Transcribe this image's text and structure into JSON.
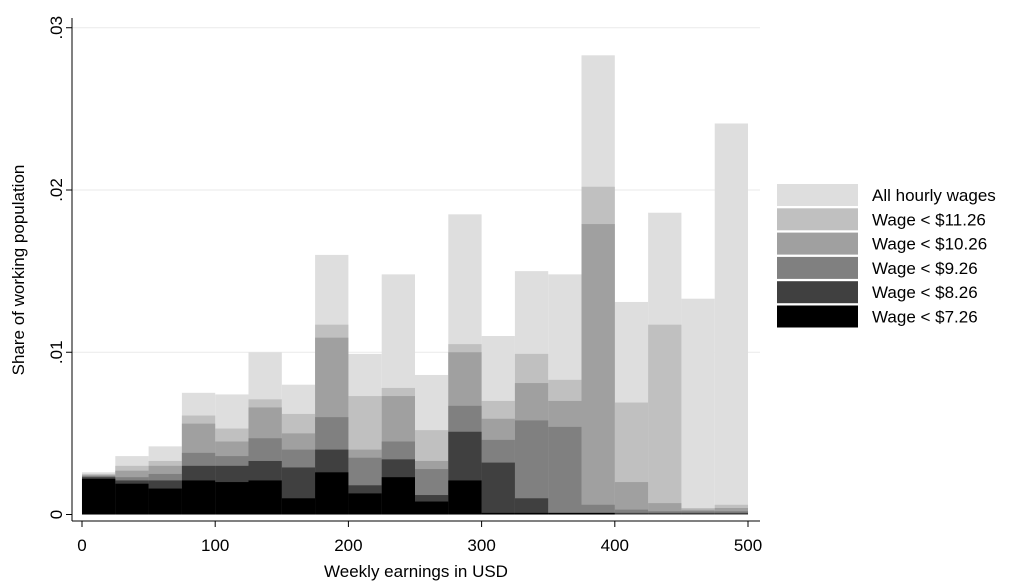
{
  "chart_data": {
    "type": "histogram",
    "xlabel": "Weekly earnings in USD",
    "ylabel": "Share of working population",
    "bins": [
      0,
      25,
      50,
      75,
      100,
      125,
      150,
      175,
      200,
      225,
      250,
      275,
      300,
      325,
      350,
      375,
      400,
      425,
      450,
      475,
      500
    ],
    "series": [
      {
        "name": "All hourly wages",
        "color": "#dedede",
        "values": [
          0.0026,
          0.0036,
          0.0042,
          0.0075,
          0.0074,
          0.01,
          0.008,
          0.016,
          0.0099,
          0.0148,
          0.0086,
          0.0185,
          0.011,
          0.015,
          0.0148,
          0.0283,
          0.0131,
          0.0186,
          0.0133,
          0.0241
        ]
      },
      {
        "name": "Wage < $11.26",
        "color": "#c0c0c0",
        "values": [
          0.0025,
          0.003,
          0.0033,
          0.0061,
          0.0053,
          0.0071,
          0.0062,
          0.0117,
          0.0073,
          0.0078,
          0.0052,
          0.0105,
          0.007,
          0.0099,
          0.0083,
          0.0202,
          0.0069,
          0.0117,
          0.0004,
          0.0006
        ]
      },
      {
        "name": "Wage < $10.26",
        "color": "#a0a0a0",
        "values": [
          0.0024,
          0.0027,
          0.003,
          0.0056,
          0.0045,
          0.0066,
          0.005,
          0.0109,
          0.004,
          0.0073,
          0.0033,
          0.01,
          0.0059,
          0.0081,
          0.007,
          0.0179,
          0.002,
          0.0007,
          0.0003,
          0.0004
        ]
      },
      {
        "name": "Wage < $9.26",
        "color": "#808080",
        "values": [
          0.0024,
          0.0023,
          0.0025,
          0.0038,
          0.0036,
          0.0047,
          0.004,
          0.006,
          0.0035,
          0.0045,
          0.0028,
          0.0067,
          0.0046,
          0.0058,
          0.0054,
          0.0006,
          0.0003,
          0.0002,
          0.0002,
          0.0002
        ]
      },
      {
        "name": "Wage < $8.26",
        "color": "#404040",
        "values": [
          0.0023,
          0.0021,
          0.0021,
          0.003,
          0.003,
          0.0033,
          0.0029,
          0.004,
          0.0018,
          0.0034,
          0.0012,
          0.0051,
          0.0032,
          0.001,
          0.0001,
          0.0001,
          0.0001,
          0.0001,
          0.0001,
          0.0001
        ]
      },
      {
        "name": "Wage < $7.26",
        "color": "#000000",
        "values": [
          0.0022,
          0.0019,
          0.0016,
          0.0021,
          0.002,
          0.0021,
          0.001,
          0.0026,
          0.0013,
          0.0023,
          0.0008,
          0.0021,
          0.0001,
          0.0001,
          0.0001,
          0.0001,
          0,
          0,
          0,
          0
        ]
      }
    ],
    "xlim": [
      -7.5,
      509
    ],
    "ylim": [
      -0.0004,
      0.0306
    ],
    "xticks": [
      0,
      100,
      200,
      300,
      400,
      500
    ],
    "yticks": [
      0,
      {
        "value": 0.01,
        "label": ".01"
      },
      {
        "value": 0.02,
        "label": ".02"
      },
      {
        "value": 0.03,
        "label": ".03"
      }
    ],
    "grid": true,
    "legend": "right"
  }
}
